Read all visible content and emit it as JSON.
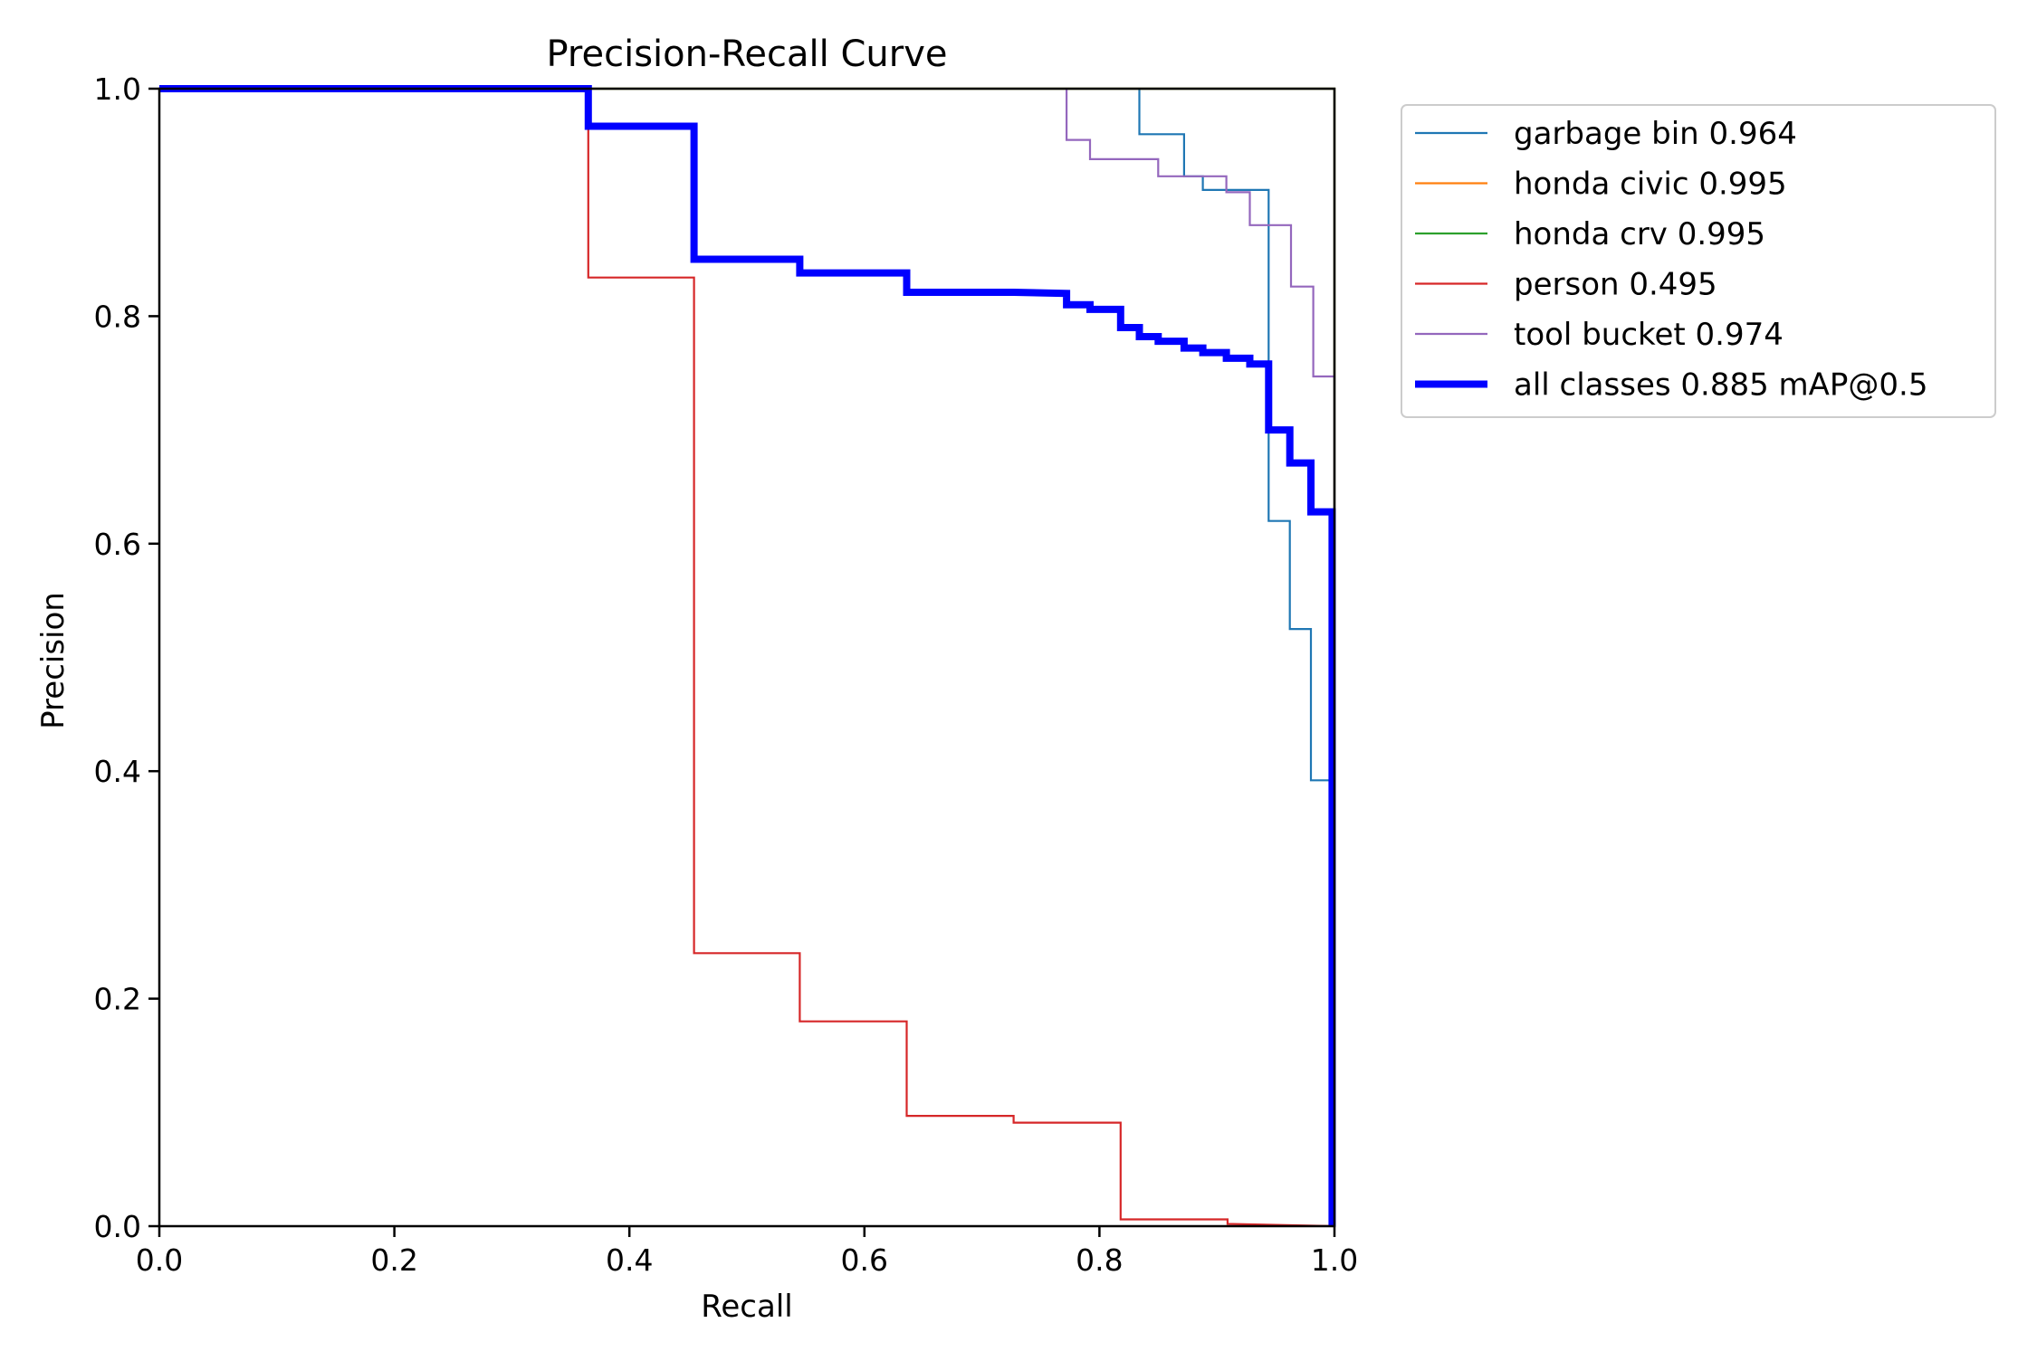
{
  "chart_data": {
    "type": "line",
    "title": "Precision-Recall Curve",
    "xlabel": "Recall",
    "ylabel": "Precision",
    "xlim": [
      0,
      1
    ],
    "ylim": [
      0,
      1
    ],
    "xticks": [
      "0.0",
      "0.2",
      "0.4",
      "0.6",
      "0.8",
      "1.0"
    ],
    "yticks": [
      "0.0",
      "0.2",
      "0.4",
      "0.6",
      "0.8",
      "1.0"
    ],
    "grid": false,
    "legend_position": "outside upper right",
    "series": [
      {
        "name": "garbage bin 0.964",
        "color": "#1f77b4",
        "width": "thin",
        "points": [
          [
            0.834,
            1.0
          ],
          [
            0.834,
            0.96
          ],
          [
            0.872,
            0.96
          ],
          [
            0.872,
            0.923
          ],
          [
            0.888,
            0.923
          ],
          [
            0.888,
            0.911
          ],
          [
            0.944,
            0.911
          ],
          [
            0.944,
            0.62
          ],
          [
            0.962,
            0.62
          ],
          [
            0.962,
            0.525
          ],
          [
            0.98,
            0.525
          ],
          [
            0.98,
            0.392
          ],
          [
            0.998,
            0.392
          ],
          [
            0.998,
            0.0
          ]
        ]
      },
      {
        "name": "honda civic 0.995",
        "color": "#ff7f0e",
        "width": "thin",
        "points": [
          [
            0.0,
            1.0
          ],
          [
            1.0,
            1.0
          ],
          [
            1.0,
            0.0
          ]
        ]
      },
      {
        "name": "honda crv 0.995",
        "color": "#2ca02c",
        "width": "thin",
        "points": [
          [
            0.0,
            1.0
          ],
          [
            1.0,
            1.0
          ],
          [
            1.0,
            0.0
          ]
        ]
      },
      {
        "name": "person 0.495",
        "color": "#d62728",
        "width": "thin",
        "points": [
          [
            0.0,
            1.0
          ],
          [
            0.365,
            1.0
          ],
          [
            0.365,
            0.834
          ],
          [
            0.455,
            0.834
          ],
          [
            0.455,
            0.24
          ],
          [
            0.545,
            0.24
          ],
          [
            0.545,
            0.18
          ],
          [
            0.636,
            0.18
          ],
          [
            0.636,
            0.097
          ],
          [
            0.727,
            0.097
          ],
          [
            0.727,
            0.091
          ],
          [
            0.818,
            0.091
          ],
          [
            0.818,
            0.006
          ],
          [
            0.909,
            0.006
          ],
          [
            0.909,
            0.002
          ],
          [
            1.0,
            0.0
          ]
        ]
      },
      {
        "name": "tool bucket 0.974",
        "color": "#9467bd",
        "width": "thin",
        "points": [
          [
            0.772,
            1.0
          ],
          [
            0.772,
            0.955
          ],
          [
            0.792,
            0.955
          ],
          [
            0.792,
            0.938
          ],
          [
            0.85,
            0.938
          ],
          [
            0.85,
            0.923
          ],
          [
            0.908,
            0.923
          ],
          [
            0.908,
            0.909
          ],
          [
            0.928,
            0.909
          ],
          [
            0.928,
            0.88
          ],
          [
            0.963,
            0.88
          ],
          [
            0.963,
            0.826
          ],
          [
            0.982,
            0.826
          ],
          [
            0.982,
            0.747
          ],
          [
            1.0,
            0.747
          ],
          [
            1.0,
            0.0
          ]
        ]
      },
      {
        "name": "all classes 0.885 mAP@0.5",
        "color": "#0000ff",
        "width": "thick",
        "points": [
          [
            0.0,
            1.0
          ],
          [
            0.365,
            1.0
          ],
          [
            0.365,
            0.967
          ],
          [
            0.455,
            0.967
          ],
          [
            0.455,
            0.85
          ],
          [
            0.545,
            0.85
          ],
          [
            0.545,
            0.838
          ],
          [
            0.636,
            0.838
          ],
          [
            0.636,
            0.821
          ],
          [
            0.727,
            0.821
          ],
          [
            0.772,
            0.82
          ],
          [
            0.772,
            0.81
          ],
          [
            0.792,
            0.81
          ],
          [
            0.792,
            0.806
          ],
          [
            0.818,
            0.806
          ],
          [
            0.818,
            0.79
          ],
          [
            0.834,
            0.79
          ],
          [
            0.834,
            0.782
          ],
          [
            0.85,
            0.782
          ],
          [
            0.85,
            0.778
          ],
          [
            0.872,
            0.778
          ],
          [
            0.872,
            0.772
          ],
          [
            0.888,
            0.772
          ],
          [
            0.888,
            0.768
          ],
          [
            0.908,
            0.768
          ],
          [
            0.908,
            0.763
          ],
          [
            0.928,
            0.763
          ],
          [
            0.928,
            0.758
          ],
          [
            0.944,
            0.758
          ],
          [
            0.944,
            0.7
          ],
          [
            0.962,
            0.7
          ],
          [
            0.962,
            0.671
          ],
          [
            0.98,
            0.671
          ],
          [
            0.98,
            0.628
          ],
          [
            0.998,
            0.628
          ],
          [
            0.998,
            0.0
          ]
        ]
      }
    ]
  }
}
